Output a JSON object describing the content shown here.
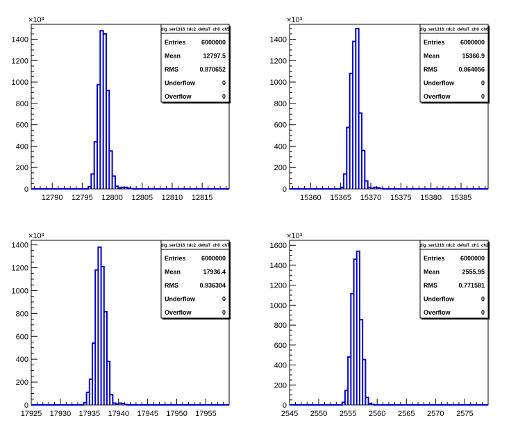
{
  "chart_data": [
    {
      "type": "histogram",
      "name": "dig_ser1316_tdc2_deltaT_ch0_ch5",
      "x_min": 12786.5,
      "x_max": 12819.5,
      "y_max": 1540,
      "x_ticks": [
        12790,
        12795,
        12800,
        12805,
        12810,
        12815
      ],
      "y_ticks": [
        0,
        200,
        400,
        600,
        800,
        1000,
        1200,
        1400
      ],
      "y_tick_labels": [
        "0",
        "200",
        "400",
        "600",
        "800",
        "1000",
        "1200",
        "1400"
      ],
      "y_exponent_label": "×10³",
      "bin_width": 0.5,
      "bins": [
        {
          "x": 12796.0,
          "y": 20
        },
        {
          "x": 12796.5,
          "y": 140
        },
        {
          "x": 12797.0,
          "y": 440
        },
        {
          "x": 12797.5,
          "y": 975
        },
        {
          "x": 12798.0,
          "y": 1480
        },
        {
          "x": 12798.5,
          "y": 1450
        },
        {
          "x": 12799.0,
          "y": 920
        },
        {
          "x": 12799.5,
          "y": 355
        },
        {
          "x": 12800.0,
          "y": 120
        },
        {
          "x": 12800.5,
          "y": 25
        },
        {
          "x": 12801.0,
          "y": 10
        },
        {
          "x": 12801.5,
          "y": 15
        },
        {
          "x": 12802.0,
          "y": 15
        },
        {
          "x": 12802.5,
          "y": 8
        },
        {
          "x": 12803.0,
          "y": 3
        }
      ],
      "stats": {
        "title": "dig_ser1316_tdc2_deltaT_ch0_ch5",
        "rows": [
          {
            "label": "Entries",
            "value": "6000000"
          },
          {
            "label": "Mean",
            "value": "12797.5"
          },
          {
            "label": "RMS",
            "value": "0.870652"
          },
          {
            "label": "Underflow",
            "value": "0"
          },
          {
            "label": "Overflow",
            "value": "0"
          }
        ]
      }
    },
    {
      "type": "histogram",
      "name": "dig_ser1316_tdc2_deltaT_ch0_ch6",
      "x_min": 15356.5,
      "x_max": 15389.5,
      "y_max": 1540,
      "x_ticks": [
        15360,
        15365,
        15370,
        15375,
        15380,
        15385
      ],
      "y_ticks": [
        0,
        200,
        400,
        600,
        800,
        1000,
        1200,
        1400
      ],
      "y_tick_labels": [
        "0",
        "200",
        "400",
        "600",
        "800",
        "1000",
        "1200",
        "1400"
      ],
      "y_exponent_label": "×10³",
      "bin_width": 0.5,
      "bins": [
        {
          "x": 15365.0,
          "y": 15
        },
        {
          "x": 15365.5,
          "y": 140
        },
        {
          "x": 15366.0,
          "y": 575
        },
        {
          "x": 15366.5,
          "y": 1080
        },
        {
          "x": 15367.0,
          "y": 1380
        },
        {
          "x": 15367.5,
          "y": 1500
        },
        {
          "x": 15368.0,
          "y": 710
        },
        {
          "x": 15368.5,
          "y": 360
        },
        {
          "x": 15369.0,
          "y": 75
        },
        {
          "x": 15369.5,
          "y": 15
        },
        {
          "x": 15370.0,
          "y": 6
        },
        {
          "x": 15370.5,
          "y": 15
        },
        {
          "x": 15371.0,
          "y": 10
        },
        {
          "x": 15371.5,
          "y": 4
        }
      ],
      "stats": {
        "title": "dig_ser1316_tdc2_deltaT_ch0_ch6",
        "rows": [
          {
            "label": "Entries",
            "value": "6000000"
          },
          {
            "label": "Mean",
            "value": "15366.9"
          },
          {
            "label": "RMS",
            "value": "0.864056"
          },
          {
            "label": "Underflow",
            "value": "0"
          },
          {
            "label": "Overflow",
            "value": "0"
          }
        ]
      }
    },
    {
      "type": "histogram",
      "name": "dig_ser1316_tdc2_deltaT_ch0_ch7",
      "x_min": 17925,
      "x_max": 17959,
      "y_max": 1440,
      "x_ticks": [
        17925,
        17930,
        17935,
        17940,
        17945,
        17950,
        17955
      ],
      "y_ticks": [
        0,
        200,
        400,
        600,
        800,
        1000,
        1200,
        1400
      ],
      "y_tick_labels": [
        "0",
        "200",
        "400",
        "600",
        "800",
        "1000",
        "1200",
        "1400"
      ],
      "y_exponent_label": "×10³",
      "bin_width": 0.5,
      "bins": [
        {
          "x": 17934.0,
          "y": 20
        },
        {
          "x": 17934.5,
          "y": 110
        },
        {
          "x": 17935.0,
          "y": 225
        },
        {
          "x": 17935.5,
          "y": 540
        },
        {
          "x": 17936.0,
          "y": 1180
        },
        {
          "x": 17936.5,
          "y": 1380
        },
        {
          "x": 17937.0,
          "y": 1210
        },
        {
          "x": 17937.5,
          "y": 815
        },
        {
          "x": 17938.0,
          "y": 380
        },
        {
          "x": 17938.5,
          "y": 90
        },
        {
          "x": 17939.0,
          "y": 15
        },
        {
          "x": 17939.5,
          "y": 8
        },
        {
          "x": 17940.0,
          "y": 15
        },
        {
          "x": 17940.5,
          "y": 12
        },
        {
          "x": 17941.0,
          "y": 4
        }
      ],
      "stats": {
        "title": "dig_ser1316_tdc2_deltaT_ch0_ch7",
        "rows": [
          {
            "label": "Entries",
            "value": "6000000"
          },
          {
            "label": "Mean",
            "value": "17936.4"
          },
          {
            "label": "RMS",
            "value": "0.936304"
          },
          {
            "label": "Underflow",
            "value": "0"
          },
          {
            "label": "Overflow",
            "value": "0"
          }
        ]
      }
    },
    {
      "type": "histogram",
      "name": "dig_ser1316_tdc2_deltaT_ch1_ch2",
      "x_min": 2545,
      "x_max": 2579,
      "y_max": 1650,
      "x_ticks": [
        2545,
        2550,
        2555,
        2560,
        2565,
        2570,
        2575
      ],
      "y_ticks": [
        0,
        200,
        400,
        600,
        800,
        1000,
        1200,
        1400,
        1600
      ],
      "y_tick_labels": [
        "0",
        "200",
        "400",
        "600",
        "800",
        "1000",
        "1200",
        "1400",
        "1600"
      ],
      "y_exponent_label": "×10³",
      "bin_width": 0.5,
      "bins": [
        {
          "x": 2554.0,
          "y": 25
        },
        {
          "x": 2554.5,
          "y": 145
        },
        {
          "x": 2555.0,
          "y": 480
        },
        {
          "x": 2555.5,
          "y": 1115
        },
        {
          "x": 2556.0,
          "y": 1460
        },
        {
          "x": 2556.5,
          "y": 1540
        },
        {
          "x": 2557.0,
          "y": 855
        },
        {
          "x": 2557.5,
          "y": 455
        },
        {
          "x": 2558.0,
          "y": 75
        },
        {
          "x": 2558.5,
          "y": 12
        },
        {
          "x": 2559.0,
          "y": 4
        }
      ],
      "stats": {
        "title": "dig_ser1316_tdc2_deltaT_ch1_ch2",
        "rows": [
          {
            "label": "Entries",
            "value": "6000000"
          },
          {
            "label": "Mean",
            "value": "2555.95"
          },
          {
            "label": "RMS",
            "value": "0.771581"
          },
          {
            "label": "Underflow",
            "value": "0"
          },
          {
            "label": "Overflow",
            "value": "0"
          }
        ]
      }
    }
  ]
}
